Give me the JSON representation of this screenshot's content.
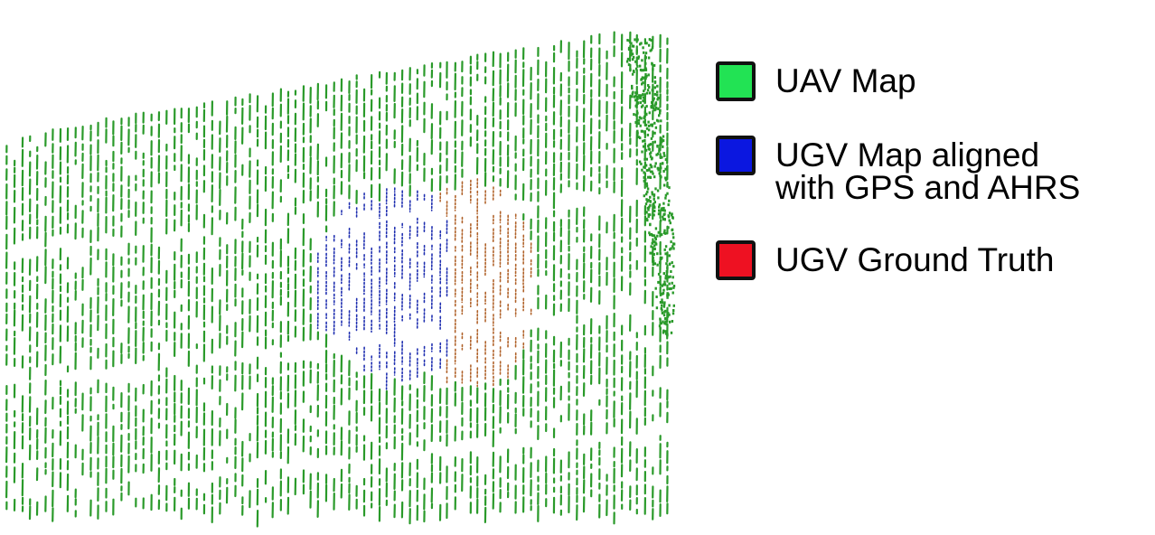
{
  "legend": {
    "items": [
      {
        "key": "uav",
        "label": "UAV Map",
        "color": "#22e354"
      },
      {
        "key": "ugv-aligned",
        "label": "UGV Map aligned\nwith GPS and AHRS",
        "color": "#0b17e0"
      },
      {
        "key": "ugv-truth",
        "label": "UGV Ground Truth",
        "color": "#ee1122"
      }
    ]
  },
  "colors": {
    "uav_points": "#2a9a2a",
    "ugv_aligned_points": "#1f2fb0",
    "ugv_truth_points": "#b0622a",
    "background": "#ffffff"
  },
  "icons": {
    "uav": "green-square-icon",
    "ugv_aligned": "blue-square-icon",
    "ugv_truth": "red-square-icon"
  }
}
